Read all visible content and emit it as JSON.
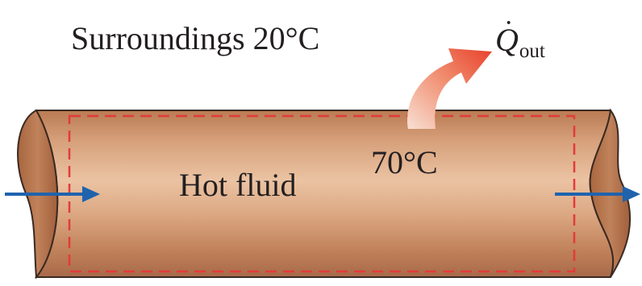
{
  "labels": {
    "surroundings": "Surroundings 20°C",
    "heat_symbol": "Q",
    "heat_subscript": "out",
    "pipe_temperature": "70°C",
    "fluid": "Hot fluid"
  },
  "colors": {
    "pipe_light": "#e2b38f",
    "pipe_mid": "#cf9265",
    "pipe_dark": "#9a5f3f",
    "end_cap": "#b8784f",
    "boundary": "#e23b3b",
    "flow_arrow": "#1f63ad",
    "heat_arrow_start": "#f6d7c9",
    "heat_arrow_end": "#ea4b2e"
  },
  "icons": [
    "flow-arrow",
    "heat-loss-arrow"
  ]
}
